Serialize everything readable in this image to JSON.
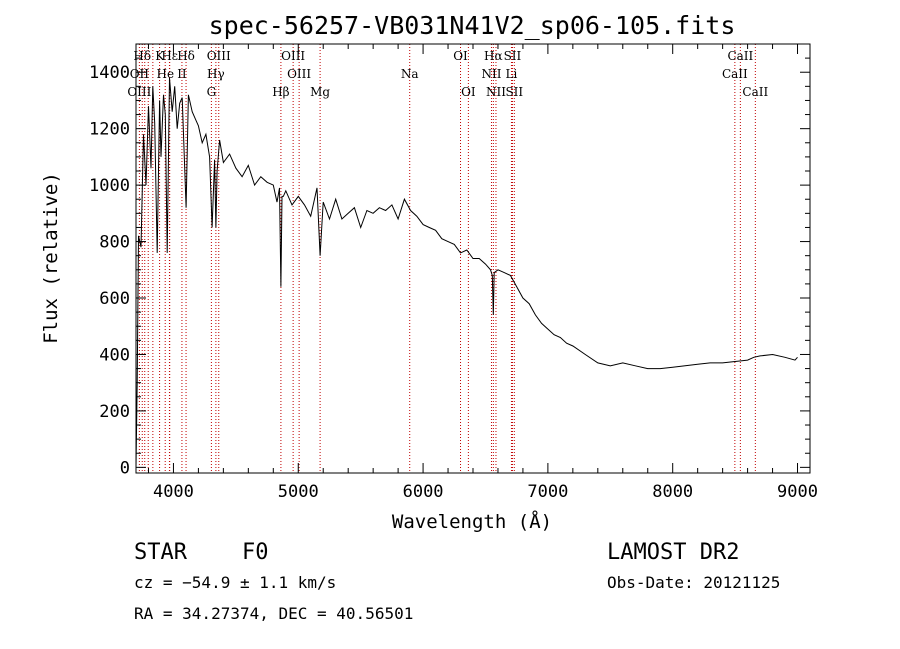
{
  "chart_data": {
    "type": "line",
    "title": "spec-56257-VB031N41V2_sp06-105.fits",
    "xlabel": "Wavelength (Å)",
    "ylabel": "Flux (relative)",
    "xlim": [
      3700,
      9100
    ],
    "ylim": [
      -20,
      1500
    ],
    "xticks": [
      4000,
      5000,
      6000,
      7000,
      8000,
      9000
    ],
    "yticks": [
      0,
      200,
      400,
      600,
      800,
      1000,
      1200,
      1400
    ],
    "grid": false,
    "series": [
      {
        "x": [
          3700,
          3710,
          3720,
          3740,
          3760,
          3780,
          3800,
          3820,
          3835,
          3850,
          3870,
          3889,
          3900,
          3920,
          3935,
          3950,
          3968,
          3990,
          4010,
          4030,
          4050,
          4070,
          4101,
          4120,
          4150,
          4180,
          4200,
          4230,
          4260,
          4290,
          4310,
          4330,
          4340,
          4350,
          4370,
          4400,
          4450,
          4500,
          4550,
          4600,
          4650,
          4700,
          4750,
          4800,
          4830,
          4850,
          4861,
          4870,
          4880,
          4900,
          4950,
          5000,
          5050,
          5100,
          5150,
          5175,
          5200,
          5250,
          5300,
          5350,
          5400,
          5450,
          5500,
          5550,
          5600,
          5650,
          5700,
          5750,
          5800,
          5850,
          5900,
          5950,
          6000,
          6050,
          6100,
          6150,
          6200,
          6250,
          6300,
          6350,
          6400,
          6450,
          6500,
          6540,
          6555,
          6563,
          6570,
          6600,
          6650,
          6700,
          6750,
          6800,
          6850,
          6900,
          6950,
          7000,
          7050,
          7100,
          7150,
          7200,
          7300,
          7400,
          7500,
          7600,
          7700,
          7800,
          7900,
          8000,
          8100,
          8200,
          8300,
          8400,
          8500,
          8600,
          8650,
          8700,
          8800,
          8900,
          8980,
          9000
        ],
        "values": [
          0,
          300,
          820,
          780,
          1180,
          1000,
          1280,
          1060,
          1350,
          1220,
          760,
          1300,
          1100,
          1320,
          1250,
          760,
          1380,
          1260,
          1350,
          1200,
          1290,
          1310,
          920,
          1320,
          1260,
          1230,
          1210,
          1150,
          1180,
          1100,
          850,
          1090,
          850,
          1050,
          1160,
          1080,
          1110,
          1060,
          1030,
          1070,
          1000,
          1030,
          1010,
          1000,
          940,
          990,
          640,
          960,
          960,
          980,
          930,
          960,
          930,
          890,
          990,
          750,
          940,
          880,
          950,
          880,
          900,
          920,
          850,
          910,
          900,
          920,
          910,
          930,
          880,
          950,
          910,
          890,
          860,
          850,
          840,
          810,
          800,
          790,
          760,
          770,
          740,
          740,
          720,
          700,
          680,
          540,
          690,
          700,
          690,
          680,
          640,
          600,
          580,
          540,
          510,
          490,
          470,
          460,
          440,
          430,
          400,
          370,
          360,
          370,
          360,
          350,
          350,
          355,
          360,
          365,
          370,
          370,
          375,
          380,
          390,
          395,
          400,
          390,
          380,
          390
        ],
        "color": "#000000"
      }
    ],
    "spectral_lines": [
      {
        "label": "Hδ",
        "x": 3750,
        "row": 1
      },
      {
        "label": "K",
        "x": 3890,
        "row": 1
      },
      {
        "label": "Hε",
        "x": 3970,
        "row": 1
      },
      {
        "label": "Hδ",
        "x": 4101,
        "row": 1
      },
      {
        "label": "OIII",
        "x": 4363,
        "row": 1
      },
      {
        "label": "OIII",
        "x": 4959,
        "row": 1
      },
      {
        "label": "OI",
        "x": 6300,
        "row": 1
      },
      {
        "label": "Hα",
        "x": 6563,
        "row": 1
      },
      {
        "label": "SII",
        "x": 6716,
        "row": 1
      },
      {
        "label": "CaII",
        "x": 8542,
        "row": 1
      },
      {
        "label": "OII",
        "x": 3727,
        "row": 2
      },
      {
        "label": "He",
        "x": 3935,
        "row": 2
      },
      {
        "label": "II",
        "x": 4068,
        "row": 2
      },
      {
        "label": "Hγ",
        "x": 4340,
        "row": 2
      },
      {
        "label": "OIII",
        "x": 5007,
        "row": 2
      },
      {
        "label": "Na",
        "x": 5893,
        "row": 2
      },
      {
        "label": "NII",
        "x": 6548,
        "row": 2
      },
      {
        "label": "Li",
        "x": 6708,
        "row": 2
      },
      {
        "label": "CaII",
        "x": 8498,
        "row": 2
      },
      {
        "label": "OIII",
        "x": 3727,
        "row": 3
      },
      {
        "label": "G",
        "x": 4304,
        "row": 3
      },
      {
        "label": "Hβ",
        "x": 4861,
        "row": 3
      },
      {
        "label": "Mg",
        "x": 5175,
        "row": 3
      },
      {
        "label": "OI",
        "x": 6363,
        "row": 3
      },
      {
        "label": "NII",
        "x": 6584,
        "row": 3
      },
      {
        "label": "SII",
        "x": 6731,
        "row": 3
      },
      {
        "label": "CaII",
        "x": 8662,
        "row": 3
      }
    ],
    "line_positions": [
      3727,
      3750,
      3770,
      3798,
      3835,
      3889,
      3934,
      3968,
      3970,
      4068,
      4101,
      4304,
      4340,
      4363,
      4861,
      4959,
      5007,
      5175,
      5893,
      6300,
      6363,
      6548,
      6563,
      6584,
      6708,
      6716,
      6731,
      8498,
      8542,
      8662
    ]
  },
  "info": {
    "object_class": "STAR",
    "subclass": "F0",
    "survey": "LAMOST DR2",
    "cz": "cz = −54.9 ± 1.1 km/s",
    "obs_date": "Obs-Date: 20121125",
    "coords": "RA =  34.27374, DEC =  40.56501"
  }
}
